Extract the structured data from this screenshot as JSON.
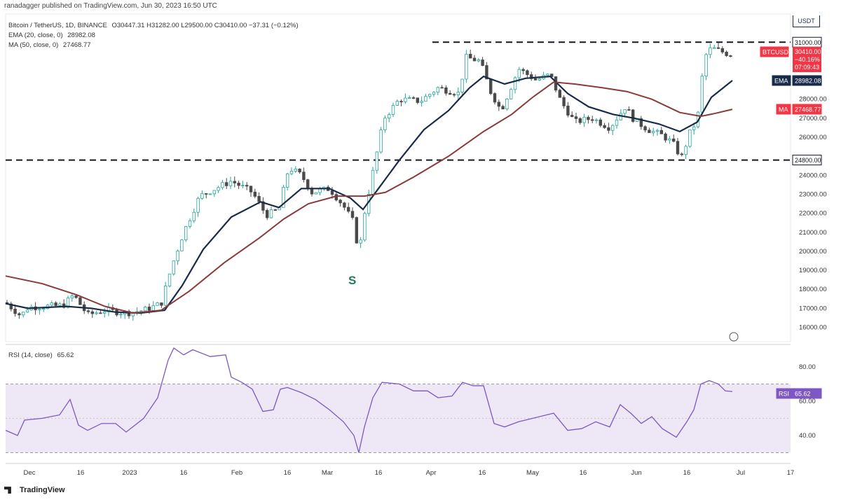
{
  "header": {
    "publisher_line": "ranadagger published on TradingView.com, Jun 30, 2023 16:50 UTC"
  },
  "legend": {
    "symbol": "Bitcoin / TetherUS, 1D, BINANCE",
    "ohlc": "O30447.31 H31282.00 L29500.00 C30410.00 −37.31 (−0.12%)",
    "ema_label": "EMA (20, close, 0)",
    "ema_value": "28982.08",
    "ma_label": "MA (50, close, 0)",
    "ma_value": "27468.77"
  },
  "rsi_legend": {
    "label": "RSI (14, close)",
    "value": "65.62"
  },
  "price_axis": {
    "currency": "USDT",
    "ticks": [
      "16000.00",
      "17000.00",
      "18000.00",
      "19000.00",
      "20000.00",
      "21000.00",
      "22000.00",
      "23000.00",
      "24000.00",
      "26000.00",
      "27000.00",
      "28000.00"
    ],
    "tags": [
      {
        "label": "31000.00",
        "kind": "level",
        "color": "#ffffff",
        "text_color": "#131722",
        "border": "#131722"
      },
      {
        "label": "BTCUSDT",
        "kind": "symbol",
        "color": "#f23645"
      },
      {
        "label": "30410.00",
        "kind": "price",
        "color": "#f23645"
      },
      {
        "label": "−40.16%",
        "kind": "price",
        "color": "#f23645"
      },
      {
        "label": "07:09:43",
        "kind": "price",
        "color": "#f23645"
      },
      {
        "label": "EMA",
        "kind": "name",
        "color": "#1a2a4a"
      },
      {
        "label": "28982.08",
        "kind": "ema",
        "color": "#1a2a4a"
      },
      {
        "label": "MA",
        "kind": "name",
        "color": "#f23645"
      },
      {
        "label": "27468.77",
        "kind": "ma",
        "color": "#f23645"
      },
      {
        "label": "24800.00",
        "kind": "level",
        "color": "#ffffff",
        "text_color": "#131722",
        "border": "#131722"
      }
    ]
  },
  "rsi_axis": {
    "ticks": [
      "80.00",
      "60.00",
      "40.00"
    ],
    "tag_name": "RSI",
    "tag_value": "65.62"
  },
  "time_axis": {
    "labels": [
      "Dec",
      "16",
      "2023",
      "16",
      "Feb",
      "16",
      "Mar",
      "16",
      "Apr",
      "16",
      "May",
      "16",
      "Jun",
      "16",
      "Jul",
      "17"
    ]
  },
  "annotation": {
    "text": "S"
  },
  "logo": {
    "text": "TradingView"
  },
  "colors": {
    "ema": "#1a2a4a",
    "ma": "#8b3a3a",
    "up_candle": "#26a69a",
    "down_candle": "#4a4a4a",
    "rsi_line": "#7e57c2",
    "rsi_band": "#ede7f6",
    "dashed_level": "#131722"
  },
  "chart_data": {
    "type": "candlestick",
    "symbol": "BTCUSDT",
    "timeframe": "1D",
    "y_range": [
      15500,
      31800
    ],
    "levels": [
      31000,
      24800
    ],
    "x": [
      "Dec",
      "16",
      "2023",
      "16",
      "Feb",
      "16",
      "Mar",
      "16",
      "Apr",
      "16",
      "May",
      "16",
      "Jun",
      "16",
      "Jul"
    ],
    "close_by_period": [
      {
        "x": "Dec",
        "v": 17200
      },
      {
        "x": "16",
        "v": 16900
      },
      {
        "x": "2023",
        "v": 16700
      },
      {
        "x": "16",
        "v": 21000
      },
      {
        "x": "Feb",
        "v": 23400
      },
      {
        "x": "16",
        "v": 24300
      },
      {
        "x": "Mar",
        "v": 22300
      },
      {
        "x": "16",
        "v": 25000
      },
      {
        "x": "Apr",
        "v": 28400
      },
      {
        "x": "16",
        "v": 30300
      },
      {
        "x": "May",
        "v": 28000
      },
      {
        "x": "16",
        "v": 27200
      },
      {
        "x": "Jun",
        "v": 26800
      },
      {
        "x": "16",
        "v": 25600
      },
      {
        "x": "Jul",
        "v": 30410
      }
    ],
    "series": [
      {
        "name": "EMA (20, close, 0)",
        "last": 28982.08
      },
      {
        "name": "MA (50, close, 0)",
        "last": 27468.77
      }
    ],
    "rsi": {
      "name": "RSI (14, close)",
      "last": 65.62,
      "levels": [
        70,
        30
      ],
      "ticks": [
        80,
        60,
        40
      ]
    }
  }
}
